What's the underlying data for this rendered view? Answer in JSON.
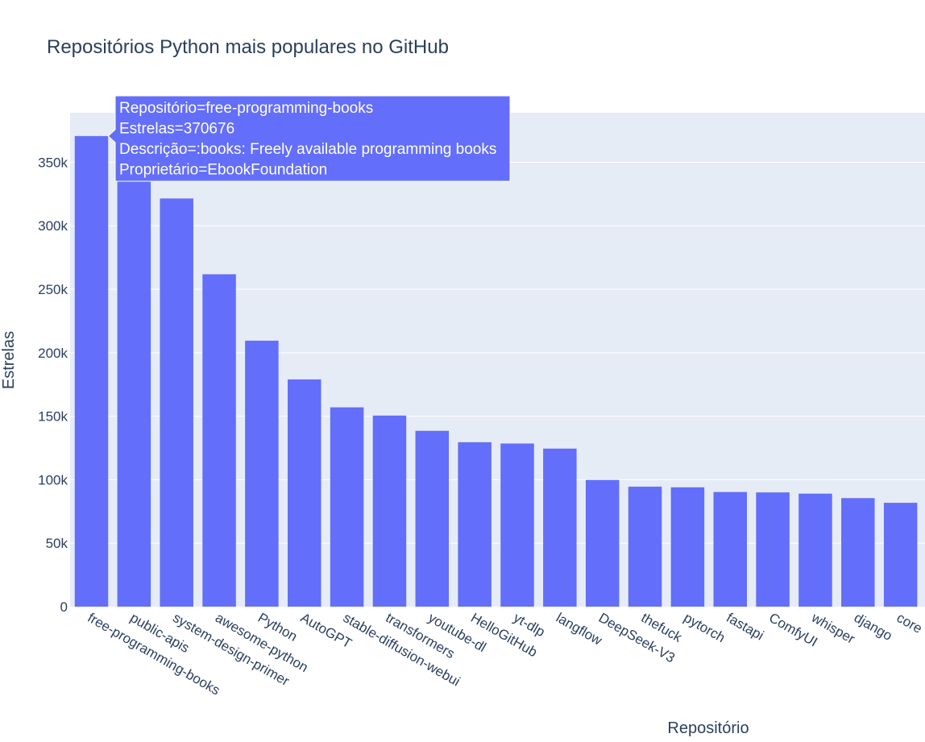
{
  "chart_data": {
    "type": "bar",
    "title": "Repositórios Python mais populares no GitHub",
    "xlabel": "Repositório",
    "ylabel": "Estrelas",
    "ylim": [
      0,
      389000
    ],
    "yticks": [
      0,
      50000,
      100000,
      150000,
      200000,
      250000,
      300000,
      350000
    ],
    "ytick_labels": [
      "0",
      "50k",
      "100k",
      "150k",
      "200k",
      "250k",
      "300k",
      "350k"
    ],
    "grid": true,
    "bar_color": "#636efa",
    "plot_bg": "#e5ecf6",
    "categories": [
      "free-programming-books",
      "public-apis",
      "system-design-primer",
      "awesome-python",
      "Python",
      "AutoGPT",
      "stable-diffusion-webui",
      "transformers",
      "youtube-dl",
      "HelloGitHub",
      "yt-dlp",
      "langflow",
      "DeepSeek-V3",
      "thefuck",
      "pytorch",
      "fastapi",
      "ComfyUI",
      "whisper",
      "django",
      "core"
    ],
    "values": [
      370676,
      336000,
      321500,
      261800,
      209500,
      179000,
      157000,
      150500,
      138500,
      129500,
      128500,
      124500,
      99800,
      94500,
      94000,
      90300,
      90000,
      89000,
      85500,
      81800
    ],
    "tooltip": {
      "lines": [
        "Repositório=free-programming-books",
        "Estrelas=370676",
        "Descrição=:books: Freely available programming books",
        "Proprietário=EbookFoundation"
      ]
    }
  }
}
